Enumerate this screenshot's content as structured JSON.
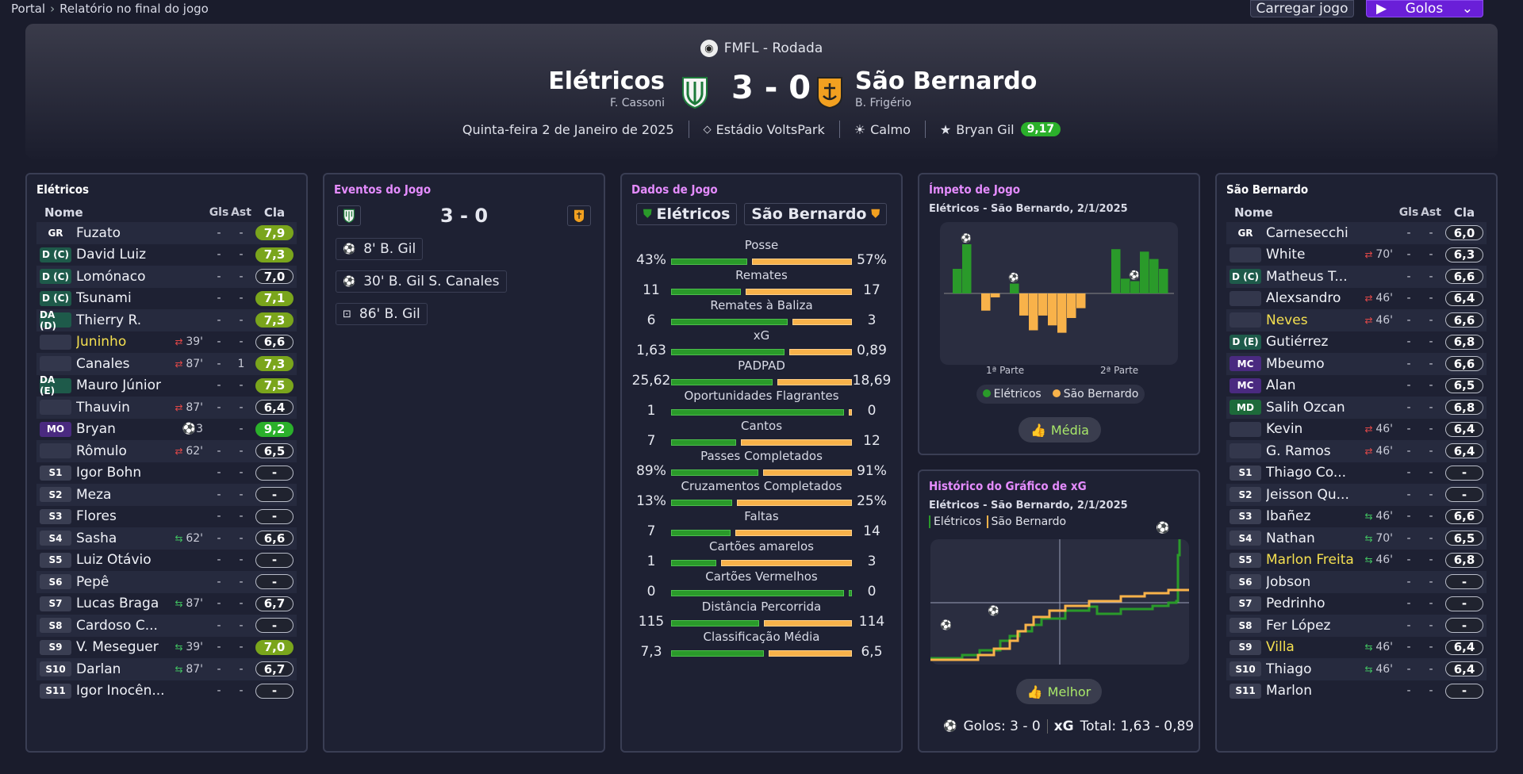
{
  "breadcrumb": {
    "root": "Portal",
    "current": "Relatório no final do jogo"
  },
  "toolbar": {
    "load_label": "Carregar jogo",
    "goals_label": "Golos"
  },
  "match": {
    "competition": "FMFL - Rodada",
    "home": {
      "name": "Elétricos",
      "manager": "F. Cassoni"
    },
    "away": {
      "name": "São Bernardo",
      "manager": "B. Frigério"
    },
    "score": "3 - 0",
    "date": "Quinta-feira 2 de Janeiro de 2025",
    "stadium": "Estádio VoltsPark",
    "weather": "Calmo",
    "player_of_match": "Bryan Gil",
    "pom_rating": "9,17"
  },
  "colors": {
    "home": "#2a9a2a",
    "away": "#f8b24a",
    "accent": "#6a1fd8"
  },
  "home_lineup": {
    "title": "Elétricos",
    "headers": {
      "name": "Nome",
      "goals": "Gls",
      "assists": "Ast",
      "rating": "Cla"
    },
    "players": [
      {
        "pos": "GR",
        "name": "Fuzato",
        "ev": "",
        "gls": "-",
        "ast": "-",
        "rating": "7,9",
        "style": "g1"
      },
      {
        "pos": "D (C)",
        "name": "David Luiz",
        "ev": "",
        "gls": "-",
        "ast": "-",
        "rating": "7,3",
        "style": "g1"
      },
      {
        "pos": "D (C)",
        "name": "Lomónaco",
        "ev": "",
        "gls": "-",
        "ast": "-",
        "rating": "7,0",
        "style": "n"
      },
      {
        "pos": "D (C)",
        "name": "Tsunami",
        "ev": "",
        "gls": "-",
        "ast": "-",
        "rating": "7,1",
        "style": "g1"
      },
      {
        "pos": "DA (D)",
        "name": "Thierry R.",
        "ev": "",
        "gls": "-",
        "ast": "-",
        "rating": "7,3",
        "style": "g1"
      },
      {
        "pos": "",
        "name": "Juninho",
        "ev": "39'",
        "evtype": "out",
        "gls": "-",
        "ast": "-",
        "rating": "6,6",
        "style": "n",
        "yellow": true
      },
      {
        "pos": "",
        "name": "Canales",
        "ev": "87'",
        "evtype": "out",
        "gls": "-",
        "ast": "1",
        "rating": "7,3",
        "style": "g1"
      },
      {
        "pos": "DA (E)",
        "name": "Mauro Júnior",
        "ev": "",
        "gls": "-",
        "ast": "-",
        "rating": "7,5",
        "style": "g1"
      },
      {
        "pos": "",
        "name": "Thauvin",
        "ev": "87'",
        "evtype": "out",
        "gls": "-",
        "ast": "-",
        "rating": "6,4",
        "style": "n"
      },
      {
        "pos": "MO",
        "name": "Bryan",
        "ev": "⚽3",
        "evtype": "goal",
        "gls": "",
        "ast": "-",
        "rating": "9,2",
        "style": "g2"
      },
      {
        "pos": "",
        "name": "Rômulo",
        "ev": "62'",
        "evtype": "out",
        "gls": "-",
        "ast": "-",
        "rating": "6,5",
        "style": "n"
      },
      {
        "pos": "S1",
        "name": "Igor Bohn",
        "ev": "",
        "gls": "-",
        "ast": "-",
        "rating": "-",
        "style": "n"
      },
      {
        "pos": "S2",
        "name": "Meza",
        "ev": "",
        "gls": "-",
        "ast": "-",
        "rating": "-",
        "style": "n"
      },
      {
        "pos": "S3",
        "name": "Flores",
        "ev": "",
        "gls": "-",
        "ast": "-",
        "rating": "-",
        "style": "n"
      },
      {
        "pos": "S4",
        "name": "Sasha",
        "ev": "62'",
        "evtype": "in",
        "gls": "-",
        "ast": "-",
        "rating": "6,6",
        "style": "n"
      },
      {
        "pos": "S5",
        "name": "Luiz Otávio",
        "ev": "",
        "gls": "-",
        "ast": "-",
        "rating": "-",
        "style": "n"
      },
      {
        "pos": "S6",
        "name": "Pepê",
        "ev": "",
        "gls": "-",
        "ast": "-",
        "rating": "-",
        "style": "n"
      },
      {
        "pos": "S7",
        "name": "Lucas Braga",
        "ev": "87'",
        "evtype": "in",
        "gls": "-",
        "ast": "-",
        "rating": "6,7",
        "style": "n"
      },
      {
        "pos": "S8",
        "name": "Cardoso C...",
        "ev": "",
        "gls": "-",
        "ast": "-",
        "rating": "-",
        "style": "n"
      },
      {
        "pos": "S9",
        "name": "V. Meseguer",
        "ev": "39'",
        "evtype": "in",
        "gls": "-",
        "ast": "-",
        "rating": "7,0",
        "style": "g1"
      },
      {
        "pos": "S10",
        "name": "Darlan",
        "ev": "87'",
        "evtype": "in",
        "gls": "-",
        "ast": "-",
        "rating": "6,7",
        "style": "n"
      },
      {
        "pos": "S11",
        "name": "Igor Inocên...",
        "ev": "",
        "gls": "-",
        "ast": "-",
        "rating": "-",
        "style": "n"
      }
    ]
  },
  "away_lineup": {
    "title": "São Bernardo",
    "headers": {
      "name": "Nome",
      "goals": "Gls",
      "assists": "Ast",
      "rating": "Cla"
    },
    "players": [
      {
        "pos": "GR",
        "name": "Carnesecchi",
        "ev": "",
        "gls": "-",
        "ast": "-",
        "rating": "6,0",
        "style": "n"
      },
      {
        "pos": "",
        "name": "White",
        "ev": "70'",
        "evtype": "out",
        "gls": "-",
        "ast": "-",
        "rating": "6,3",
        "style": "n"
      },
      {
        "pos": "D (C)",
        "name": "Matheus T...",
        "ev": "",
        "gls": "-",
        "ast": "-",
        "rating": "6,6",
        "style": "n"
      },
      {
        "pos": "",
        "name": "Alexsandro",
        "ev": "46'",
        "evtype": "out",
        "gls": "-",
        "ast": "-",
        "rating": "6,4",
        "style": "n"
      },
      {
        "pos": "",
        "name": "Neves",
        "ev": "46'",
        "evtype": "out",
        "gls": "-",
        "ast": "-",
        "rating": "6,6",
        "style": "n",
        "yellow": true
      },
      {
        "pos": "D (E)",
        "name": "Gutiérrez",
        "ev": "",
        "gls": "-",
        "ast": "-",
        "rating": "6,8",
        "style": "n"
      },
      {
        "pos": "MC",
        "name": "Mbeumo",
        "ev": "",
        "gls": "-",
        "ast": "-",
        "rating": "6,6",
        "style": "n"
      },
      {
        "pos": "MC",
        "name": "Alan",
        "ev": "",
        "gls": "-",
        "ast": "-",
        "rating": "6,5",
        "style": "n"
      },
      {
        "pos": "MD",
        "name": "Salih Ozcan",
        "ev": "",
        "gls": "-",
        "ast": "-",
        "rating": "6,8",
        "style": "n"
      },
      {
        "pos": "",
        "name": "Kevin",
        "ev": "46'",
        "evtype": "out",
        "gls": "-",
        "ast": "-",
        "rating": "6,4",
        "style": "n"
      },
      {
        "pos": "",
        "name": "G. Ramos",
        "ev": "46'",
        "evtype": "out",
        "gls": "-",
        "ast": "-",
        "rating": "6,4",
        "style": "n"
      },
      {
        "pos": "S1",
        "name": "Thiago Co...",
        "ev": "",
        "gls": "-",
        "ast": "-",
        "rating": "-",
        "style": "n"
      },
      {
        "pos": "S2",
        "name": "Jeisson Qu...",
        "ev": "",
        "gls": "-",
        "ast": "-",
        "rating": "-",
        "style": "n"
      },
      {
        "pos": "S3",
        "name": "Ibañez",
        "ev": "46'",
        "evtype": "in",
        "gls": "-",
        "ast": "-",
        "rating": "6,6",
        "style": "n"
      },
      {
        "pos": "S4",
        "name": "Nathan",
        "ev": "70'",
        "evtype": "in",
        "gls": "-",
        "ast": "-",
        "rating": "6,5",
        "style": "n"
      },
      {
        "pos": "S5",
        "name": "Marlon Freitas",
        "ev": "46'",
        "evtype": "in",
        "gls": "-",
        "ast": "-",
        "rating": "6,8",
        "style": "n",
        "yellow": true
      },
      {
        "pos": "S6",
        "name": "Jobson",
        "ev": "",
        "gls": "-",
        "ast": "-",
        "rating": "-",
        "style": "n"
      },
      {
        "pos": "S7",
        "name": "Pedrinho",
        "ev": "",
        "gls": "-",
        "ast": "-",
        "rating": "-",
        "style": "n"
      },
      {
        "pos": "S8",
        "name": "Fer López",
        "ev": "",
        "gls": "-",
        "ast": "-",
        "rating": "-",
        "style": "n"
      },
      {
        "pos": "S9",
        "name": "Villa",
        "ev": "46'",
        "evtype": "in",
        "gls": "-",
        "ast": "-",
        "rating": "6,4",
        "style": "n",
        "yellow": true
      },
      {
        "pos": "S10",
        "name": "Thiago",
        "ev": "46'",
        "evtype": "in",
        "gls": "-",
        "ast": "-",
        "rating": "6,4",
        "style": "n"
      },
      {
        "pos": "S11",
        "name": "Marlon",
        "ev": "",
        "gls": "-",
        "ast": "-",
        "rating": "-",
        "style": "n"
      }
    ]
  },
  "events": {
    "title": "Eventos do Jogo",
    "score": "3 - 0",
    "items": [
      {
        "icon": "ball-icon",
        "text": "8' B. Gil"
      },
      {
        "icon": "ball-icon",
        "text": "30' B. Gil S. Canales"
      },
      {
        "icon": "penalty-icon",
        "text": "86' B. Gil"
      }
    ]
  },
  "stats": {
    "title": "Dados de Jogo",
    "home": "Elétricos",
    "away": "São Bernardo",
    "rows": [
      {
        "label": "Posse",
        "home": "43%",
        "away": "57%",
        "h": 43,
        "a": 57
      },
      {
        "label": "Remates",
        "home": "11",
        "away": "17",
        "h": 11,
        "a": 17
      },
      {
        "label": "Remates à Baliza",
        "home": "6",
        "away": "3",
        "h": 6,
        "a": 3
      },
      {
        "label": "xG",
        "home": "1,63",
        "away": "0,89",
        "h": 1.63,
        "a": 0.89
      },
      {
        "label": "PADPAD",
        "home": "25,62",
        "away": "18,69",
        "h": 25.62,
        "a": 18.69
      },
      {
        "label": "Oportunidades Flagrantes",
        "home": "1",
        "away": "0",
        "h": 1,
        "a": 0
      },
      {
        "label": "Cantos",
        "home": "7",
        "away": "12",
        "h": 7,
        "a": 12
      },
      {
        "label": "Passes Completados",
        "home": "89%",
        "away": "91%",
        "h": 89,
        "a": 91
      },
      {
        "label": "Cruzamentos Completados",
        "home": "13%",
        "away": "25%",
        "h": 13,
        "a": 25
      },
      {
        "label": "Faltas",
        "home": "7",
        "away": "14",
        "h": 7,
        "a": 14
      },
      {
        "label": "Cartões amarelos",
        "home": "1",
        "away": "3",
        "h": 1,
        "a": 3
      },
      {
        "label": "Cartões Vermelhos",
        "home": "0",
        "away": "0",
        "h": 0,
        "a": 0
      },
      {
        "label": "Distância Percorrida",
        "home": "115",
        "away": "114",
        "h": 115,
        "a": 114
      },
      {
        "label": "Classificação Média",
        "home": "7,3",
        "away": "6,5",
        "h": 7.3,
        "a": 6.5
      }
    ]
  },
  "momentum": {
    "title": "Ímpeto de Jogo",
    "subtitle": "Elétricos - São Bernardo, 2/1/2025",
    "half1": "1ª Parte",
    "half2": "2ª Parte",
    "legend_home": "Elétricos",
    "legend_away": "São Bernardo",
    "button": "Média",
    "values": [
      0.5,
      1.0,
      0.0,
      -0.35,
      -0.08,
      0.0,
      0.2,
      -0.45,
      -0.75,
      -0.45,
      -0.65,
      -0.8,
      -0.5,
      -0.3,
      0.0,
      0.9,
      0.3,
      0.25,
      0.85,
      0.7,
      0.5
    ],
    "goal_bars": [
      1,
      6,
      17
    ]
  },
  "xg_chart": {
    "title": "Histórico do Gráfico de xG",
    "subtitle": "Elétricos - São Bernardo, 2/1/2025",
    "legend_home": "Elétricos",
    "legend_away": "São Bernardo",
    "button": "Melhor",
    "footer_goals": "Golos: 3 - 0",
    "footer_xg_label": "xG",
    "footer_xg": "Total: 1,63 - 0,89"
  },
  "chart_data": [
    {
      "type": "bar",
      "title": "Ímpeto de Jogo",
      "series": [
        {
          "name": "Elétricos"
        },
        {
          "name": "São Bernardo"
        }
      ],
      "values": [
        0.5,
        1.0,
        0.0,
        -0.35,
        -0.08,
        0.0,
        0.2,
        -0.45,
        -0.75,
        -0.45,
        -0.65,
        -0.8,
        -0.5,
        -0.3,
        0.0,
        0.9,
        0.3,
        0.25,
        0.85,
        0.7,
        0.5
      ]
    },
    {
      "type": "line",
      "title": "Histórico do Gráfico de xG",
      "x": [
        0,
        90
      ],
      "series": [
        {
          "name": "Elétricos",
          "final": 1.63
        },
        {
          "name": "São Bernardo",
          "final": 0.89
        }
      ]
    }
  ]
}
